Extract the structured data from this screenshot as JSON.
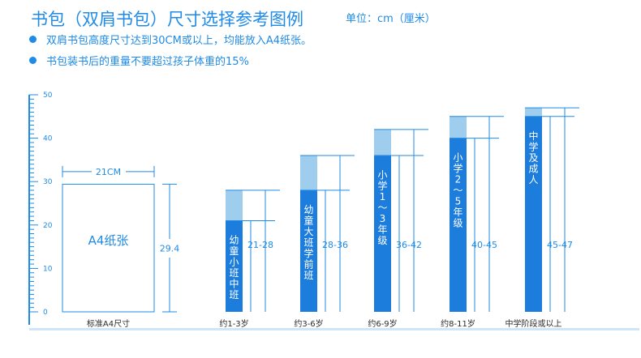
{
  "header": {
    "title": "书包（双肩书包）尺寸选择参考图例",
    "unit": "单位：cm（厘米）"
  },
  "notes": [
    "双肩书包高度尺寸达到30CM或以上，均能放入A4纸张。",
    "书包装书后的重量不要超过孩子体重的15%"
  ],
  "colors": {
    "accent": "#1f8be6",
    "bar_dark": "#1c7ddd",
    "bar_light": "#9fcdee",
    "line": "#1f8be6"
  },
  "chart_data": {
    "type": "bar",
    "title": "书包（双肩书包）尺寸选择参考图例",
    "ylabel": "单位：cm（厘米）",
    "ylim": [
      0,
      50
    ],
    "yticks": [
      0,
      10,
      20,
      30,
      40,
      50
    ],
    "a4": {
      "label": "A4纸张",
      "width_label": "21CM",
      "height_label": "29.4",
      "width": 21,
      "height": 29.4,
      "category": "标准A4尺寸"
    },
    "categories": [
      "约1-3岁",
      "约3-6岁",
      "约6-9岁",
      "约8-11岁",
      "中学阶段或以上"
    ],
    "series_labels": [
      "幼童小班中班",
      "幼童大班学前班",
      "小学1~3年级",
      "小学2~5年级",
      "中学及成人"
    ],
    "ranges": [
      [
        21,
        28
      ],
      [
        28,
        36
      ],
      [
        36,
        42
      ],
      [
        40,
        45
      ],
      [
        45,
        47
      ]
    ],
    "range_labels": [
      "21-28",
      "28-36",
      "36-42",
      "40-45",
      "45-47"
    ]
  }
}
